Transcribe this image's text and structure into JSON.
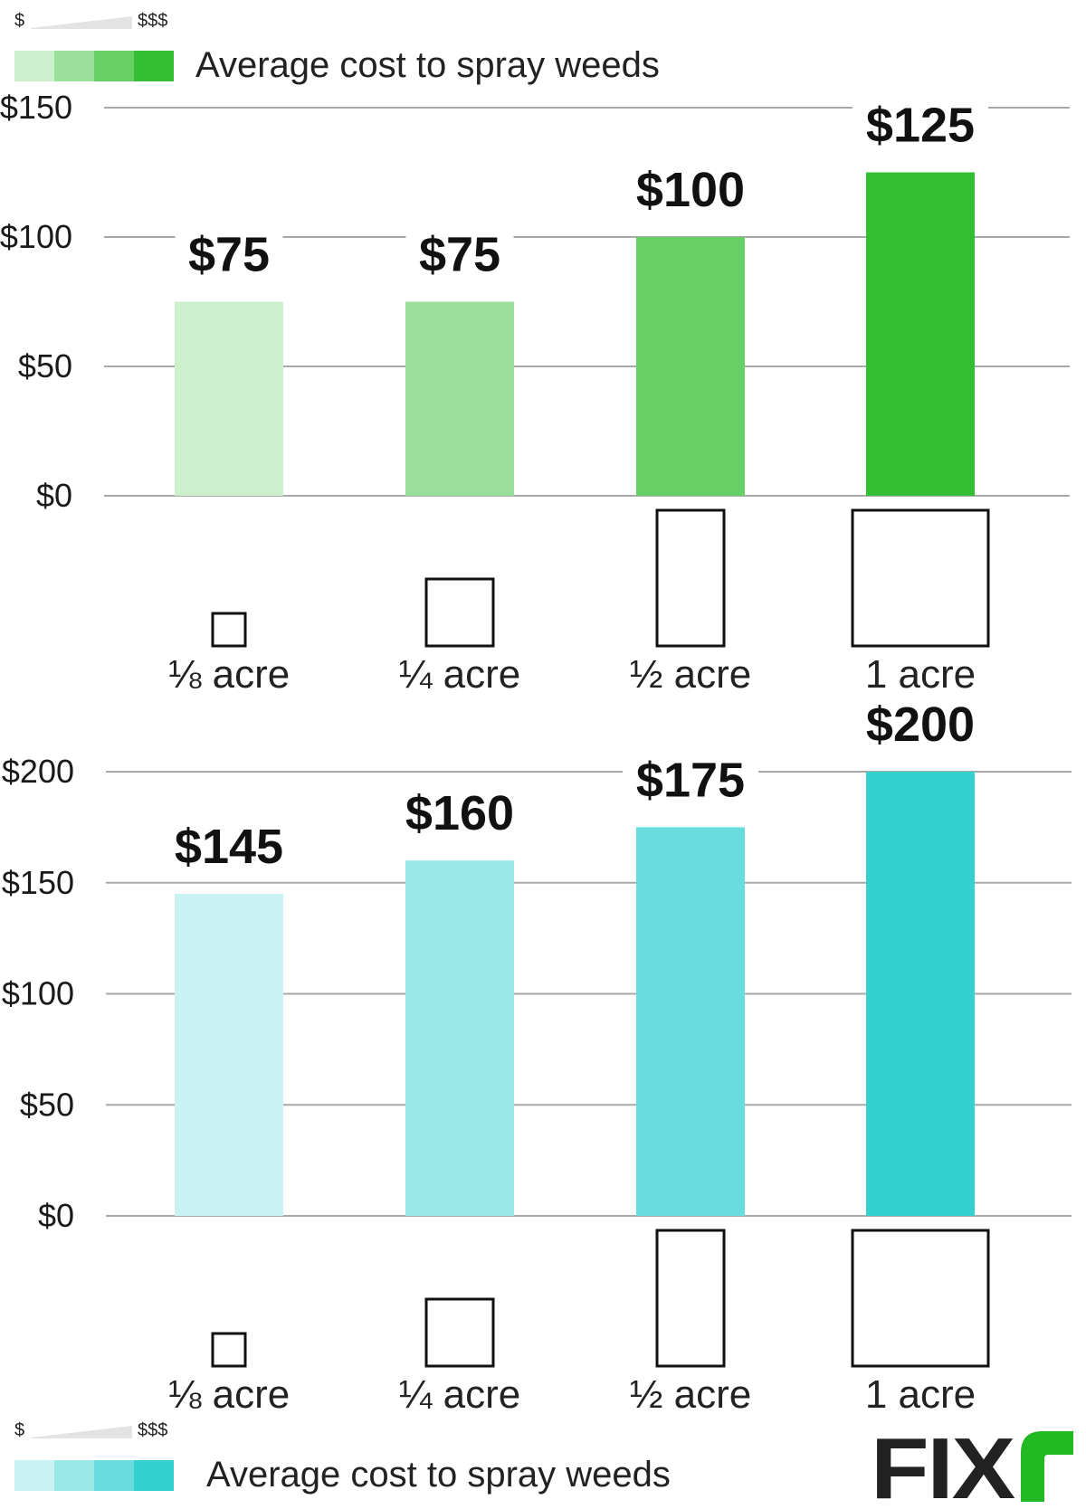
{
  "legend_top": {
    "low_label": "$",
    "high_label": "$$$",
    "text": "Average cost to spray weeds",
    "swatches": [
      "#ccf0cc",
      "#9ae09a",
      "#66cf66",
      "#33bf33"
    ]
  },
  "legend_bottom": {
    "low_label": "$",
    "high_label": "$$$",
    "text": "Average cost to spray weeds",
    "swatches": [
      "#cbf2f2",
      "#9ae9e9",
      "#69dddd",
      "#35d1d1"
    ]
  },
  "chart_data": [
    {
      "type": "bar",
      "categories": [
        "⅛ acre",
        "¼ acre",
        "½ acre",
        "1 acre"
      ],
      "values": [
        75,
        75,
        100,
        125
      ],
      "value_labels": [
        "$75",
        "$75",
        "$100",
        "$125"
      ],
      "ylim": [
        0,
        150
      ],
      "yticks": [
        0,
        50,
        100,
        150
      ],
      "ytick_labels": [
        "$0",
        "$50",
        "$100",
        "$150"
      ],
      "colors": [
        "#ccf0cc",
        "#9ae09a",
        "#66cf66",
        "#33bf33"
      ],
      "grid": true
    },
    {
      "type": "bar",
      "categories": [
        "⅛ acre",
        "¼ acre",
        "½ acre",
        "1 acre"
      ],
      "values": [
        145,
        160,
        175,
        200
      ],
      "value_labels": [
        "$145",
        "$160",
        "$175",
        "$200"
      ],
      "ylim": [
        0,
        200
      ],
      "yticks": [
        0,
        50,
        100,
        150,
        200
      ],
      "ytick_labels": [
        "$0",
        "$50",
        "$100",
        "$150",
        "$200"
      ],
      "colors": [
        "#cbf2f2",
        "#9ae9e9",
        "#69dddd",
        "#35d1d1"
      ],
      "grid": true
    }
  ],
  "logo": {
    "text": "FIX",
    "accent_color": "#22b822"
  }
}
